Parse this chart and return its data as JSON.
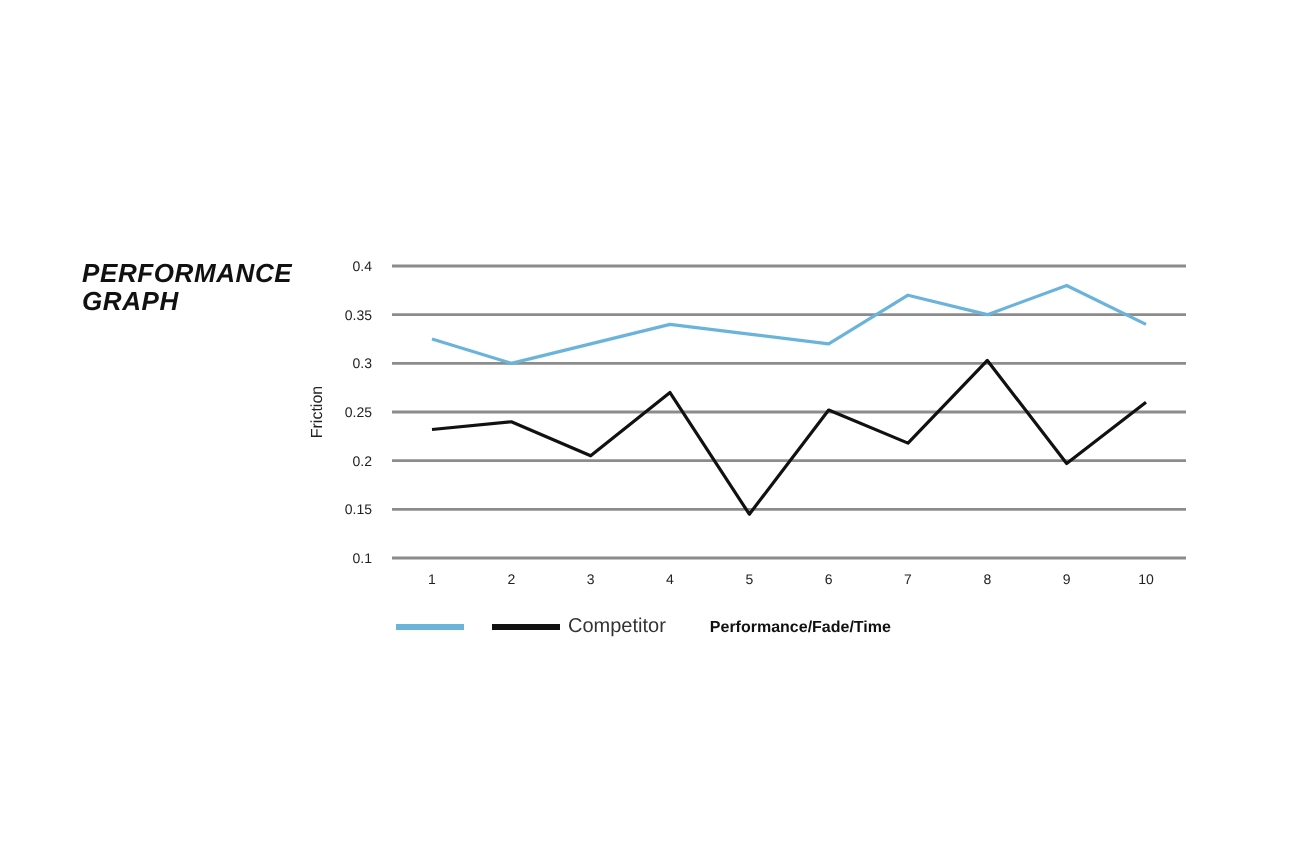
{
  "chart_data": {
    "type": "line",
    "title": "PERFORMANCE GRAPH",
    "xlabel": "Performance/Fade/Time",
    "ylabel": "Friction",
    "categories": [
      "1",
      "2",
      "3",
      "4",
      "5",
      "6",
      "7",
      "8",
      "9",
      "10"
    ],
    "series": [
      {
        "color": "#6ab4dc",
        "values": [
          0.325,
          0.3,
          0.32,
          0.34,
          0.33,
          0.32,
          0.37,
          0.35,
          0.38,
          0.34
        ]
      },
      {
        "name": "Competitor",
        "color": "#111111",
        "values": [
          0.232,
          0.24,
          0.205,
          0.27,
          0.145,
          0.252,
          0.218,
          0.303,
          0.197,
          0.26
        ]
      }
    ],
    "ylim": [
      0.1,
      0.4
    ],
    "yticks": [
      0.1,
      0.15,
      0.2,
      0.25,
      0.3,
      0.35,
      0.4
    ],
    "grid": "y",
    "legend": "bottom",
    "marker": "none"
  }
}
